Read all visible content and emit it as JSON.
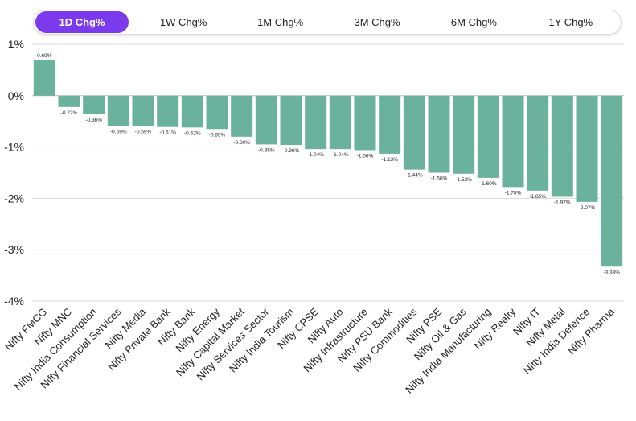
{
  "tabs": [
    {
      "label": "1D Chg%",
      "active": true
    },
    {
      "label": "1W Chg%",
      "active": false
    },
    {
      "label": "1M Chg%",
      "active": false
    },
    {
      "label": "3M Chg%",
      "active": false
    },
    {
      "label": "6M Chg%",
      "active": false
    },
    {
      "label": "1Y Chg%",
      "active": false
    }
  ],
  "colors": {
    "bar": "#6ab29b",
    "accent": "#7c3aed",
    "grid": "#d8d8d8"
  },
  "chart_data": {
    "type": "bar",
    "title": "",
    "xlabel": "",
    "ylabel": "",
    "ylim": [
      -4,
      1
    ],
    "yticks": [
      1,
      0,
      -1,
      -2,
      -3,
      -4
    ],
    "ytick_labels": [
      "1%",
      "0%",
      "-1%",
      "-2%",
      "-3%",
      "-4%"
    ],
    "grid": true,
    "categories": [
      "Nifty FMCG",
      "Nifty MNC",
      "Nifty India Consumption",
      "Nifty Financial Services",
      "Nifty Media",
      "Nifty Private Bank",
      "Nifty Bank",
      "Nifty Energy",
      "Nifty Capital Market",
      "Nifty Services Sector",
      "Nifty India Tourism",
      "Nifty CPSE",
      "Nifty Auto",
      "Nifty Infrastructure",
      "Nifty PSU Bank",
      "Nifty Commodities",
      "Nifty PSE",
      "Nifty Oil & Gas",
      "Nifty India Manufacturing",
      "Nifty Realty",
      "Nifty IT",
      "Nifty Metal",
      "Nifty India Defence",
      "Nifty Pharma"
    ],
    "values": [
      0.69,
      -0.22,
      -0.36,
      -0.59,
      -0.59,
      -0.61,
      -0.62,
      -0.65,
      -0.8,
      -0.95,
      -0.96,
      -1.04,
      -1.04,
      -1.06,
      -1.13,
      -1.44,
      -1.5,
      -1.52,
      -1.6,
      -1.78,
      -1.85,
      -1.97,
      -2.07,
      -3.33
    ],
    "data_labels": [
      "0.69%",
      "-0.22%",
      "-0.36%",
      "-0.59%",
      "-0.59%",
      "-0.61%",
      "-0.62%",
      "-0.65%",
      "-0.80%",
      "-0.95%",
      "-0.96%",
      "-1.04%",
      "-1.04%",
      "-1.06%",
      "-1.13%",
      "-1.44%",
      "-1.50%",
      "-1.52%",
      "-1.60%",
      "-1.78%",
      "-1.85%",
      "-1.97%",
      "-2.07%",
      "-3.33%"
    ]
  }
}
